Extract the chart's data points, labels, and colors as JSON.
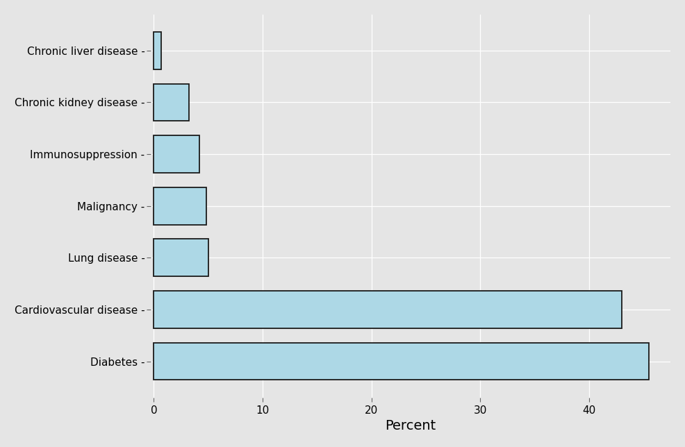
{
  "categories": [
    "Chronic liver disease",
    "Chronic kidney disease",
    "Immunosuppression",
    "Malignancy",
    "Lung disease",
    "Cardiovascular disease",
    "Diabetes"
  ],
  "values": [
    0.7,
    3.2,
    4.2,
    4.8,
    5.0,
    43.0,
    45.5
  ],
  "bar_color": "#add8e6",
  "bar_edge_color": "#1a1a1a",
  "bar_edge_width": 1.3,
  "background_color": "#e5e5e5",
  "grid_color": "#ffffff",
  "xlabel": "Percent",
  "xlim": [
    -0.3,
    47.5
  ],
  "xticks": [
    0,
    10,
    20,
    30,
    40
  ],
  "xlabel_fontsize": 14,
  "ylabel_fontsize": 11,
  "tick_fontsize": 11,
  "bar_height": 0.72
}
